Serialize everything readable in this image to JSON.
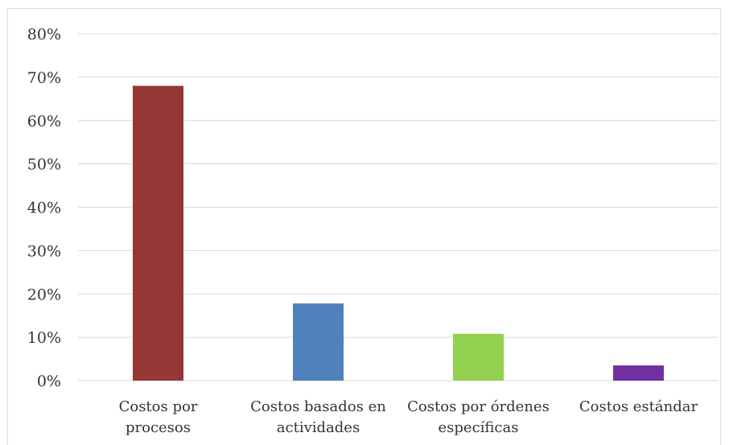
{
  "chart_data": {
    "type": "bar",
    "categories": [
      [
        "Costos por",
        "procesos"
      ],
      [
        "Costos basados en",
        "actividades"
      ],
      [
        "Costos por órdenes",
        "específicas"
      ],
      [
        "Costos estándar"
      ]
    ],
    "values": [
      0.68,
      0.178,
      0.108,
      0.035
    ],
    "colors": [
      "#953735",
      "#4f81bd",
      "#92d050",
      "#7030a0"
    ],
    "ylim": [
      0,
      0.8
    ],
    "yticks": [
      "0%",
      "10%",
      "20%",
      "30%",
      "40%",
      "50%",
      "60%",
      "70%",
      "80%"
    ],
    "grid": true,
    "gridColor": "#d9d9d9",
    "legend": "none"
  }
}
